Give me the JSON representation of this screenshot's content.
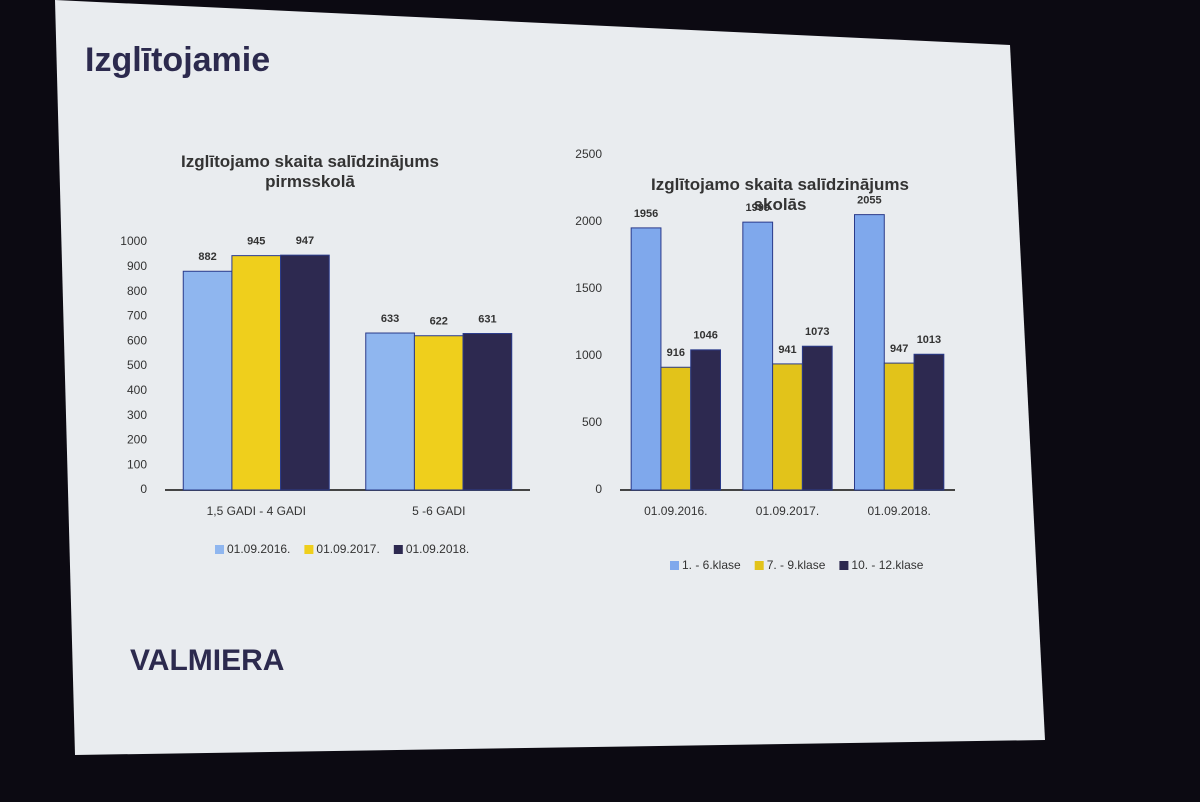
{
  "slide": {
    "title": "Izglītojamie",
    "logo": "VALMIERA"
  },
  "chart_data": [
    {
      "type": "bar",
      "title": "Izglītojamo skaita salīdzinājums pirmsskolā",
      "categories": [
        "1,5 GADI - 4 GADI",
        "5 -6 GADI"
      ],
      "series": [
        {
          "name": "01.09.2016.",
          "color": "#8fb6ef",
          "values": [
            882,
            633
          ]
        },
        {
          "name": "01.09.2017.",
          "color": "#efcf1c",
          "values": [
            945,
            622
          ]
        },
        {
          "name": "01.09.2018.",
          "color": "#2d2950",
          "values": [
            947,
            631
          ]
        }
      ],
      "ylim": [
        0,
        1000
      ],
      "yticks": [
        0,
        100,
        200,
        300,
        400,
        500,
        600,
        700,
        800,
        900,
        1000
      ],
      "grid": false
    },
    {
      "type": "bar",
      "title": "Izglītojamo skaita salīdzinājums skolās",
      "categories": [
        "01.09.2016.",
        "01.09.2017.",
        "01.09.2018."
      ],
      "series": [
        {
          "name": "1. - 6.klase",
          "color": "#7fa8ec",
          "values": [
            1956,
            1999,
            2055
          ]
        },
        {
          "name": "7. - 9.klase",
          "color": "#e2c31a",
          "values": [
            916,
            941,
            947
          ]
        },
        {
          "name": "10. - 12.klase",
          "color": "#2d2950",
          "values": [
            1046,
            1073,
            1013
          ]
        }
      ],
      "ylim": [
        0,
        2500
      ],
      "yticks": [
        0,
        500,
        1000,
        1500,
        2000,
        2500
      ],
      "grid": false
    }
  ]
}
